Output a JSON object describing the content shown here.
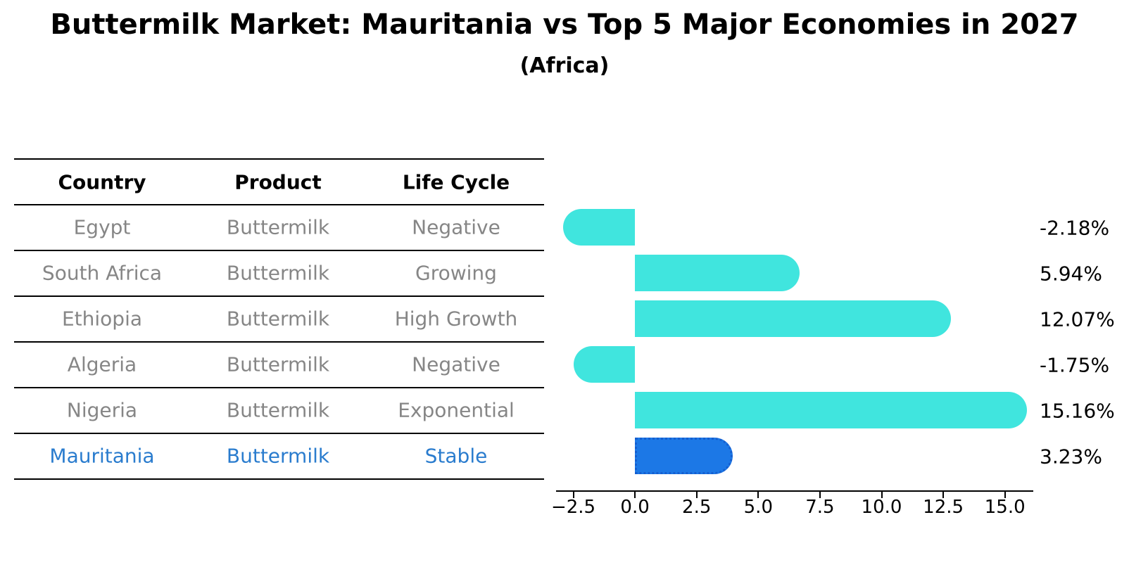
{
  "title": "Buttermilk Market: Mauritania vs Top 5 Major Economies in 2027",
  "subtitle": "(Africa)",
  "table": {
    "headers": [
      "Country",
      "Product",
      "Life Cycle"
    ],
    "rows": [
      {
        "country": "Egypt",
        "product": "Buttermilk",
        "life_cycle": "Negative",
        "highlight": false
      },
      {
        "country": "South Africa",
        "product": "Buttermilk",
        "life_cycle": "Growing",
        "highlight": false
      },
      {
        "country": "Ethiopia",
        "product": "Buttermilk",
        "life_cycle": "High Growth",
        "highlight": false
      },
      {
        "country": "Algeria",
        "product": "Buttermilk",
        "life_cycle": "Negative",
        "highlight": false
      },
      {
        "country": "Nigeria",
        "product": "Buttermilk",
        "life_cycle": "Exponential",
        "highlight": false
      },
      {
        "country": "Mauritania",
        "product": "Buttermilk",
        "life_cycle": "Stable",
        "highlight": true
      }
    ]
  },
  "chart_data": {
    "type": "bar",
    "orientation": "horizontal",
    "title": "Buttermilk Market: Mauritania vs Top 5 Major Economies in 2027",
    "subtitle": "(Africa)",
    "categories": [
      "Egypt",
      "South Africa",
      "Ethiopia",
      "Algeria",
      "Nigeria",
      "Mauritania"
    ],
    "values": [
      -2.18,
      5.94,
      12.07,
      -1.75,
      15.16,
      3.23
    ],
    "value_labels": [
      "-2.18%",
      "5.94%",
      "12.07%",
      "-1.75%",
      "15.16%",
      "3.23%"
    ],
    "highlight_index": 5,
    "xlabel": "",
    "ylabel": "",
    "xlim": [
      -3.2,
      16.15
    ],
    "xtick_values": [
      -2.5,
      0,
      2.5,
      5,
      7.5,
      10,
      12.5,
      15
    ],
    "xtick_labels": [
      "−2.5",
      "0.0",
      "2.5",
      "5.0",
      "7.5",
      "10.0",
      "12.5",
      "15.0"
    ],
    "grid": false,
    "legend": false,
    "colors": {
      "bar": "#40E5DE",
      "highlight_bar": "#1C78E6",
      "highlight_border": "#155FD0",
      "highlight_text": "#2A7CCE",
      "cell_text": "#868686",
      "axis": "#000000",
      "background": "#FFFFFF"
    }
  }
}
